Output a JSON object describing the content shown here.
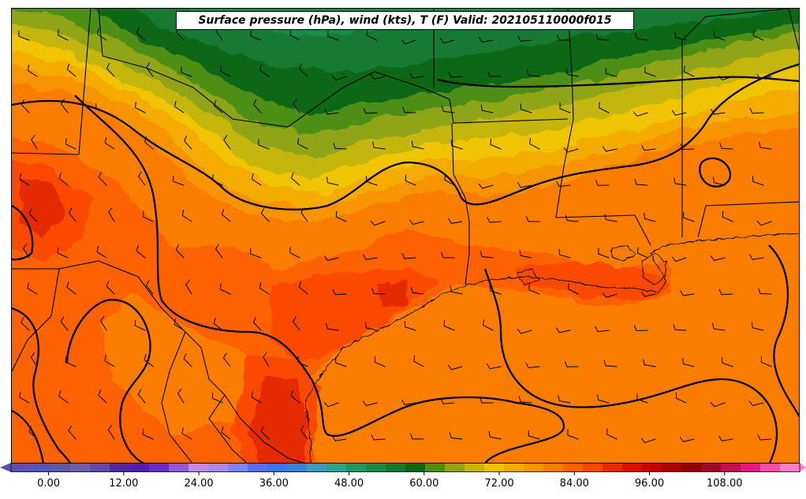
{
  "title": "Surface pressure (hPa), wind (kts), T (F) Valid: 202105110000f015",
  "colorbar": {
    "min": -6,
    "max": 120,
    "step": 3,
    "tick_values": [
      0,
      12,
      24,
      36,
      48,
      60,
      72,
      84,
      96,
      108
    ],
    "tick_labels": [
      "0.00",
      "12.00",
      "24.00",
      "36.00",
      "48.00",
      "60.00",
      "72.00",
      "84.00",
      "96.00",
      "108.00"
    ],
    "colors": [
      "#5b4fb0",
      "#4d57b8",
      "#5a5aa8",
      "#6a62a8",
      "#5e4ca6",
      "#4b2aa0",
      "#4f1fb0",
      "#6a2ec8",
      "#8f5ad8",
      "#c08ae8",
      "#a98aef",
      "#7f83f5",
      "#5570f5",
      "#3d74f0",
      "#3a84d8",
      "#3c9bbf",
      "#2ea38b",
      "#219766",
      "#1a8a4a",
      "#137a34",
      "#0b6718",
      "#4e8e14",
      "#8fa413",
      "#c4b60a",
      "#f0c400",
      "#f4ac00",
      "#f89400",
      "#fb7d00",
      "#fd6200",
      "#fb4a00",
      "#e62a00",
      "#d61000",
      "#c40000",
      "#a80000",
      "#8e0000",
      "#9c0a2a",
      "#c00f55",
      "#e01a80",
      "#f050a8",
      "#ff80c8"
    ]
  },
  "layers": {
    "filled": "temperature",
    "contours": "surface pressure",
    "barbs": "wind"
  }
}
